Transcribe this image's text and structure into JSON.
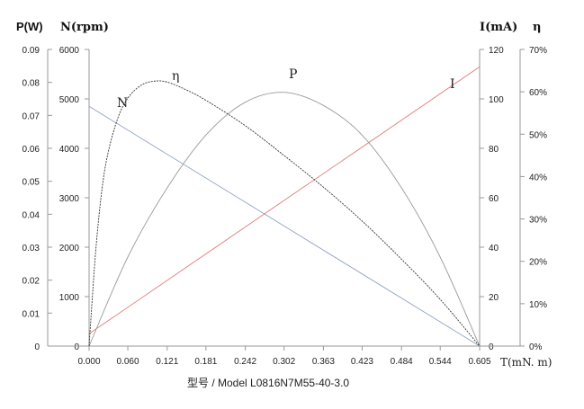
{
  "chart_data": {
    "type": "line",
    "model_label": "型号 / Model    L0816N7M55-40-3.0",
    "axes": {
      "x": {
        "label": "T(mN. m)",
        "ticks": [
          "0.000",
          "0.060",
          "0.121",
          "0.181",
          "0.242",
          "0.302",
          "0.363",
          "0.423",
          "0.484",
          "0.544",
          "0.605"
        ],
        "range": [
          0,
          0.605
        ]
      },
      "p": {
        "label": "P(W)",
        "ticks": [
          "0",
          "0.01",
          "0.02",
          "0.03",
          "0.04",
          "0.05",
          "0.06",
          "0.07",
          "0.08",
          "0.09"
        ],
        "range": [
          0,
          0.09
        ]
      },
      "n": {
        "label": "N(rpm)",
        "ticks": [
          "0",
          "1000",
          "2000",
          "3000",
          "4000",
          "5000",
          "6000"
        ],
        "range": [
          0,
          6000
        ]
      },
      "i": {
        "label": "I(mA)",
        "ticks": [
          "0",
          "20",
          "40",
          "60",
          "80",
          "100",
          "120"
        ],
        "range": [
          0,
          120
        ]
      },
      "eta": {
        "label": "η",
        "ticks": [
          "0%",
          "10%",
          "20%",
          "30%",
          "40%",
          "50%",
          "60%",
          "70%"
        ],
        "range": [
          0,
          70
        ]
      }
    },
    "series": [
      {
        "name": "N",
        "axis": "n",
        "color": "#8fa0c8",
        "x": [
          0,
          0.605
        ],
        "y": [
          4850,
          0
        ]
      },
      {
        "name": "I",
        "axis": "i",
        "color": "#e07a7a",
        "x": [
          0,
          0.605
        ],
        "y": [
          5,
          113
        ]
      },
      {
        "name": "P",
        "axis": "p",
        "color": "#9a9a9a",
        "x": [
          0,
          0.06,
          0.121,
          0.181,
          0.242,
          0.302,
          0.363,
          0.423,
          0.484,
          0.544,
          0.605
        ],
        "y": [
          0,
          0.027,
          0.048,
          0.064,
          0.074,
          0.077,
          0.073,
          0.064,
          0.048,
          0.027,
          0
        ]
      },
      {
        "name": "η",
        "axis": "eta",
        "color": "#333333",
        "dashed": true,
        "x": [
          0,
          0.01,
          0.02,
          0.03,
          0.045,
          0.06,
          0.08,
          0.1,
          0.121,
          0.15,
          0.181,
          0.242,
          0.302,
          0.363,
          0.423,
          0.484,
          0.544,
          0.605
        ],
        "y": [
          0,
          22,
          37,
          46,
          54,
          58.5,
          61.5,
          62.5,
          62.3,
          60.5,
          58,
          52,
          45,
          37.5,
          29.5,
          20.5,
          11,
          0
        ]
      }
    ]
  }
}
